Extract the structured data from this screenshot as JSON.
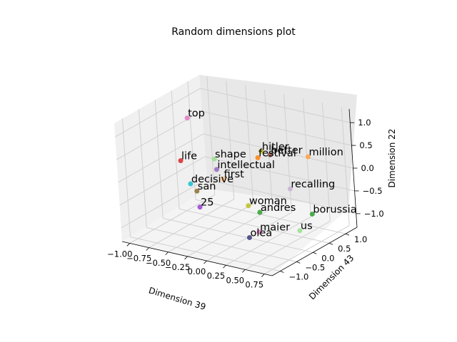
{
  "chart_data": {
    "type": "scatter",
    "projection": "3d",
    "title": "Random dimensions plot",
    "xlabel": "Dimension 39",
    "ylabel": "Dimension 43",
    "zlabel": "Dimension 22",
    "xticks": [
      "−1.00",
      "−0.75",
      "−0.50",
      "−0.25",
      "0.00",
      "0.25",
      "0.50",
      "0.75"
    ],
    "yticks": [
      "−1.0",
      "−0.5",
      "0.0",
      "0.5",
      "1.0"
    ],
    "zticks": [
      "−1.0",
      "−0.5",
      "0.0",
      "0.5",
      "1.0"
    ],
    "grid": true,
    "points": [
      {
        "label": "top",
        "x": -0.97,
        "y": 0.62,
        "z": 0.7,
        "color": "#e377c2"
      },
      {
        "label": "hitler",
        "x": -0.2,
        "y": 1.02,
        "z": 0.1,
        "color": "#bcbd22"
      },
      {
        "label": "better",
        "x": -0.1,
        "y": 1.05,
        "z": 0.05,
        "color": "#8c564b"
      },
      {
        "label": "festival",
        "x": -0.22,
        "y": 0.95,
        "z": -0.02,
        "color": "#ff7f0e"
      },
      {
        "label": "million",
        "x": 0.4,
        "y": 1.05,
        "z": 0.2,
        "color": "#ffa040"
      },
      {
        "label": "shape",
        "x": -0.55,
        "y": 0.4,
        "z": 0.05,
        "color": "#98df8a"
      },
      {
        "label": "life",
        "x": -0.95,
        "y": 0.3,
        "z": -0.1,
        "color": "#d62728"
      },
      {
        "label": "intellectual",
        "x": -0.55,
        "y": 0.45,
        "z": -0.2,
        "color": "#9467bd"
      },
      {
        "label": "recalling",
        "x": 0.18,
        "y": 0.95,
        "z": -0.55,
        "color": "#c5b0d5"
      },
      {
        "label": "first",
        "x": -0.45,
        "y": 0.4,
        "z": -0.35,
        "color": "#ffbb78"
      },
      {
        "label": "decisive",
        "x": -0.75,
        "y": 0.1,
        "z": -0.45,
        "color": "#17becf"
      },
      {
        "label": "san",
        "x": -0.65,
        "y": 0.05,
        "z": -0.55,
        "color": "#8c6d31"
      },
      {
        "label": "borussia",
        "x": 0.45,
        "y": 0.95,
        "z": -1.0,
        "color": "#2ca02c"
      },
      {
        "label": "woman",
        "x": -0.05,
        "y": 0.2,
        "z": -0.7,
        "color": "#bcbd22"
      },
      {
        "label": "andres",
        "x": 0.05,
        "y": 0.3,
        "z": -0.85,
        "color": "#2ca02c"
      },
      {
        "label": "us",
        "x": 0.45,
        "y": 0.55,
        "z": -1.2,
        "color": "#98df8a"
      },
      {
        "label": "25",
        "x": -0.4,
        "y": -0.45,
        "z": -0.6,
        "color": "#9440d0"
      },
      {
        "label": "maier",
        "x": 0.25,
        "y": -0.2,
        "z": -1.0,
        "color": "#e377c2"
      },
      {
        "label": "olea",
        "x": 0.25,
        "y": -0.5,
        "z": -1.0,
        "color": "#393b79"
      }
    ]
  }
}
